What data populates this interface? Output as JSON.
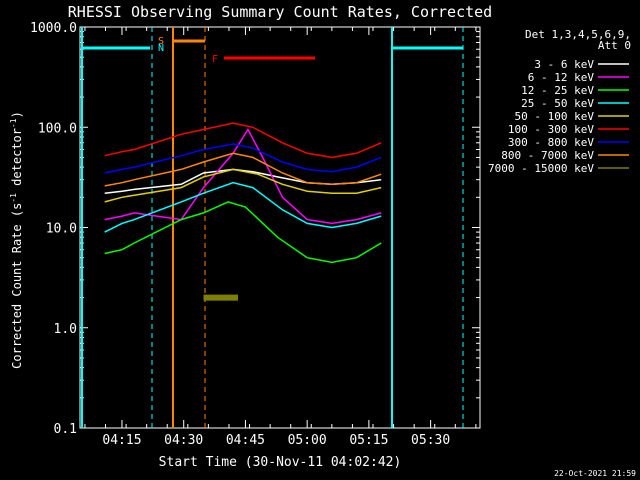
{
  "chart_data": {
    "type": "line",
    "title": "RHESSI Observing Summary Count Rates, Corrected",
    "xlabel": "Start Time (30-Nov-11 04:02:42)",
    "ylabel_main": "Corrected Count Rate (s",
    "ylabel_sup1": "-1",
    "ylabel_mid": " detector",
    "ylabel_sup2": "-1",
    "ylabel_end": ")",
    "yscale": "log",
    "ylim": [
      0.1,
      1000
    ],
    "xlim_minutes": [
      4.08,
      5.7
    ],
    "x_tick_labels": [
      "04:15",
      "04:30",
      "04:45",
      "05:00",
      "05:15",
      "05:30"
    ],
    "x_ticks_minutes": [
      4.25,
      4.5,
      4.75,
      5.0,
      5.25,
      5.5
    ],
    "y_tick_labels": [
      "0.1",
      "1.0",
      "10.0",
      "100.0",
      "1000.0"
    ],
    "y_ticks": [
      0.1,
      1,
      10,
      100,
      1000
    ],
    "legend_title": [
      "Det 1,3,4,5,6,9,",
      "Att 0"
    ],
    "legend_position": "right",
    "series": [
      {
        "name": "3 - 6 keV",
        "color": "#ffffff",
        "points": [
          [
            4.18,
            22
          ],
          [
            4.25,
            23
          ],
          [
            4.3,
            24
          ],
          [
            4.49,
            27
          ],
          [
            4.58,
            35
          ],
          [
            4.7,
            38
          ],
          [
            4.78,
            36
          ],
          [
            4.88,
            32
          ],
          [
            5.0,
            28
          ],
          [
            5.1,
            27
          ],
          [
            5.2,
            28
          ],
          [
            5.3,
            30
          ]
        ]
      },
      {
        "name": "6 - 12 keV",
        "color": "#ff00ff",
        "points": [
          [
            4.18,
            12
          ],
          [
            4.25,
            13
          ],
          [
            4.3,
            14
          ],
          [
            4.49,
            12
          ],
          [
            4.58,
            25
          ],
          [
            4.7,
            55
          ],
          [
            4.76,
            95
          ],
          [
            4.82,
            50
          ],
          [
            4.9,
            20
          ],
          [
            5.0,
            12
          ],
          [
            5.1,
            11
          ],
          [
            5.2,
            12
          ],
          [
            5.3,
            14
          ]
        ]
      },
      {
        "name": "12 - 25 keV",
        "color": "#00ff00",
        "points": [
          [
            4.18,
            5.5
          ],
          [
            4.25,
            6
          ],
          [
            4.3,
            7
          ],
          [
            4.49,
            12
          ],
          [
            4.58,
            14
          ],
          [
            4.68,
            18
          ],
          [
            4.75,
            16
          ],
          [
            4.88,
            8
          ],
          [
            5.0,
            5
          ],
          [
            5.1,
            4.5
          ],
          [
            5.2,
            5
          ],
          [
            5.3,
            7
          ]
        ]
      },
      {
        "name": "25 - 50 keV",
        "color": "#00ffff",
        "points": [
          [
            4.18,
            9
          ],
          [
            4.25,
            11
          ],
          [
            4.3,
            12
          ],
          [
            4.49,
            18
          ],
          [
            4.58,
            22
          ],
          [
            4.7,
            28
          ],
          [
            4.78,
            25
          ],
          [
            4.9,
            15
          ],
          [
            5.0,
            11
          ],
          [
            5.1,
            10
          ],
          [
            5.2,
            11
          ],
          [
            5.3,
            13
          ]
        ]
      },
      {
        "name": "50 - 100 keV",
        "color": "#e0d000",
        "points": [
          [
            4.18,
            18
          ],
          [
            4.25,
            20
          ],
          [
            4.3,
            21
          ],
          [
            4.49,
            25
          ],
          [
            4.58,
            32
          ],
          [
            4.7,
            38
          ],
          [
            4.8,
            34
          ],
          [
            4.9,
            27
          ],
          [
            5.0,
            23
          ],
          [
            5.1,
            22
          ],
          [
            5.2,
            22
          ],
          [
            5.3,
            25
          ]
        ]
      },
      {
        "name": "100 - 300 keV",
        "color": "#ff0000",
        "points": [
          [
            4.18,
            52
          ],
          [
            4.25,
            57
          ],
          [
            4.3,
            60
          ],
          [
            4.49,
            85
          ],
          [
            4.58,
            95
          ],
          [
            4.7,
            110
          ],
          [
            4.78,
            100
          ],
          [
            4.9,
            70
          ],
          [
            5.0,
            55
          ],
          [
            5.1,
            50
          ],
          [
            5.2,
            55
          ],
          [
            5.3,
            70
          ]
        ]
      },
      {
        "name": "300 - 800 keV",
        "color": "#0000ff",
        "points": [
          [
            4.18,
            35
          ],
          [
            4.25,
            38
          ],
          [
            4.3,
            40
          ],
          [
            4.49,
            52
          ],
          [
            4.58,
            60
          ],
          [
            4.7,
            68
          ],
          [
            4.78,
            62
          ],
          [
            4.9,
            45
          ],
          [
            5.0,
            38
          ],
          [
            5.1,
            36
          ],
          [
            5.2,
            40
          ],
          [
            5.3,
            50
          ]
        ]
      },
      {
        "name": "800 - 7000 keV",
        "color": "#ff8800",
        "points": [
          [
            4.18,
            26
          ],
          [
            4.25,
            28
          ],
          [
            4.3,
            30
          ],
          [
            4.49,
            38
          ],
          [
            4.58,
            45
          ],
          [
            4.7,
            55
          ],
          [
            4.78,
            50
          ],
          [
            4.9,
            35
          ],
          [
            5.0,
            28
          ],
          [
            5.1,
            27
          ],
          [
            5.2,
            28
          ],
          [
            5.3,
            34
          ]
        ]
      },
      {
        "name": "7000 - 15000 keV",
        "color": "#808000",
        "points": [
          [
            4.58,
            2
          ],
          [
            4.62,
            2
          ],
          [
            4.66,
            2
          ],
          [
            4.7,
            2
          ],
          [
            4.72,
            2
          ]
        ]
      }
    ],
    "annotations": {
      "S_label": "S",
      "N_label": "N",
      "F_label": "F",
      "footer_date": "22-Oct-2021 21:59"
    }
  }
}
